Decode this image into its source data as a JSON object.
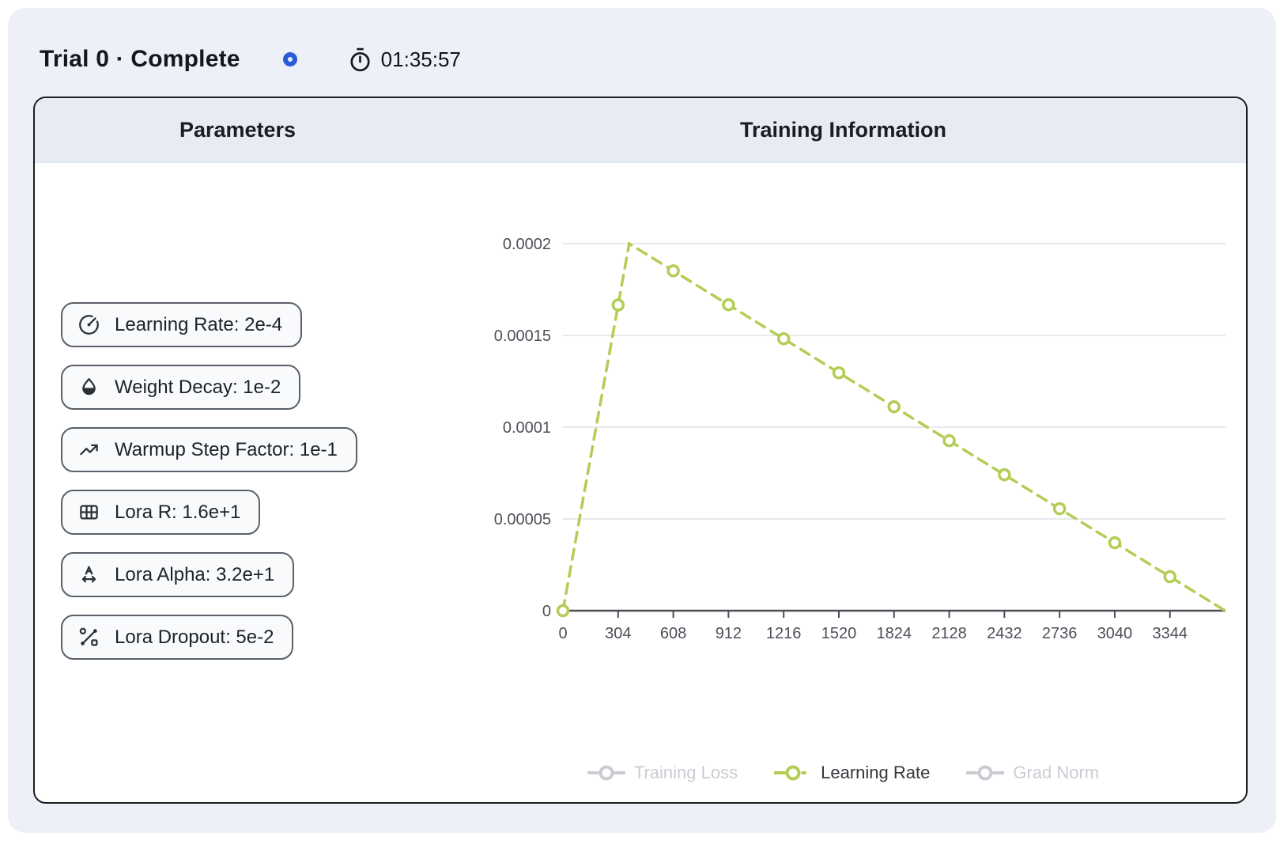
{
  "header": {
    "title": "Trial 0 · Complete",
    "timer_value": "01:35:57",
    "spinner_color": "#2a5bd8",
    "timer_icon": "stopwatch-icon"
  },
  "card": {
    "parameters_title": "Parameters",
    "training_title": "Training Information"
  },
  "parameters": [
    {
      "icon": "gauge-icon",
      "label": "Learning Rate: 2e-4"
    },
    {
      "icon": "droplet-icon",
      "label": "Weight Decay: 1e-2"
    },
    {
      "icon": "trending-up-icon",
      "label": "Warmup Step Factor: 1e-1"
    },
    {
      "icon": "table-icon",
      "label": "Lora R: 1.6e+1"
    },
    {
      "icon": "a-arrows-icon",
      "label": "Lora Alpha: 3.2e+1"
    },
    {
      "icon": "dropout-icon",
      "label": "Lora Dropout: 5e-2"
    }
  ],
  "chart_data": {
    "type": "line",
    "title": "",
    "xlabel": "",
    "ylabel": "",
    "xlim": [
      0,
      3650
    ],
    "ylim": [
      0,
      0.0002
    ],
    "grid": true,
    "legend_position": "bottom",
    "xticks": {
      "values": [
        0,
        304,
        608,
        912,
        1216,
        1520,
        1824,
        2128,
        2432,
        2736,
        3040,
        3344
      ],
      "labels": [
        "0",
        "304",
        "608",
        "912",
        "1216",
        "1520",
        "1824",
        "2128",
        "2432",
        "2736",
        "3040",
        "3344"
      ]
    },
    "yticks": {
      "values": [
        0,
        5e-05,
        0.0001,
        0.00015,
        0.0002
      ],
      "labels": [
        "0",
        "0.00005",
        "0.0001",
        "0.00015",
        "0.0002"
      ]
    },
    "colors": {
      "active_series": "#b3cd55",
      "inactive_series": "#c9cdd3",
      "grid_line": "#d8dadd",
      "axis_line": "#4b4e54",
      "tick_label": "#4b5058",
      "active_label": "#34373c",
      "inactive_label": "#c9cdd3"
    },
    "series": [
      {
        "name": "Training Loss",
        "visible": false,
        "values": null
      },
      {
        "name": "Learning Rate",
        "visible": true,
        "line_style": "dashed",
        "x": [
          0,
          304,
          608,
          912,
          1216,
          1520,
          1824,
          2128,
          2432,
          2736,
          3040,
          3344
        ],
        "values": [
          0,
          0.00016658,
          0.0001852,
          0.00016668,
          0.00014816,
          0.00012964,
          0.00011112,
          9.26e-05,
          7.408e-05,
          5.556e-05,
          3.703e-05,
          1.851e-05
        ],
        "line_vertices": [
          [
            0,
            0
          ],
          [
            365,
            0.0002
          ],
          [
            3648,
            0
          ]
        ],
        "peak_value": 0.0002,
        "warmup_end_step": 365,
        "final_step": 3648
      },
      {
        "name": "Grad Norm",
        "visible": false,
        "values": null
      }
    ]
  }
}
